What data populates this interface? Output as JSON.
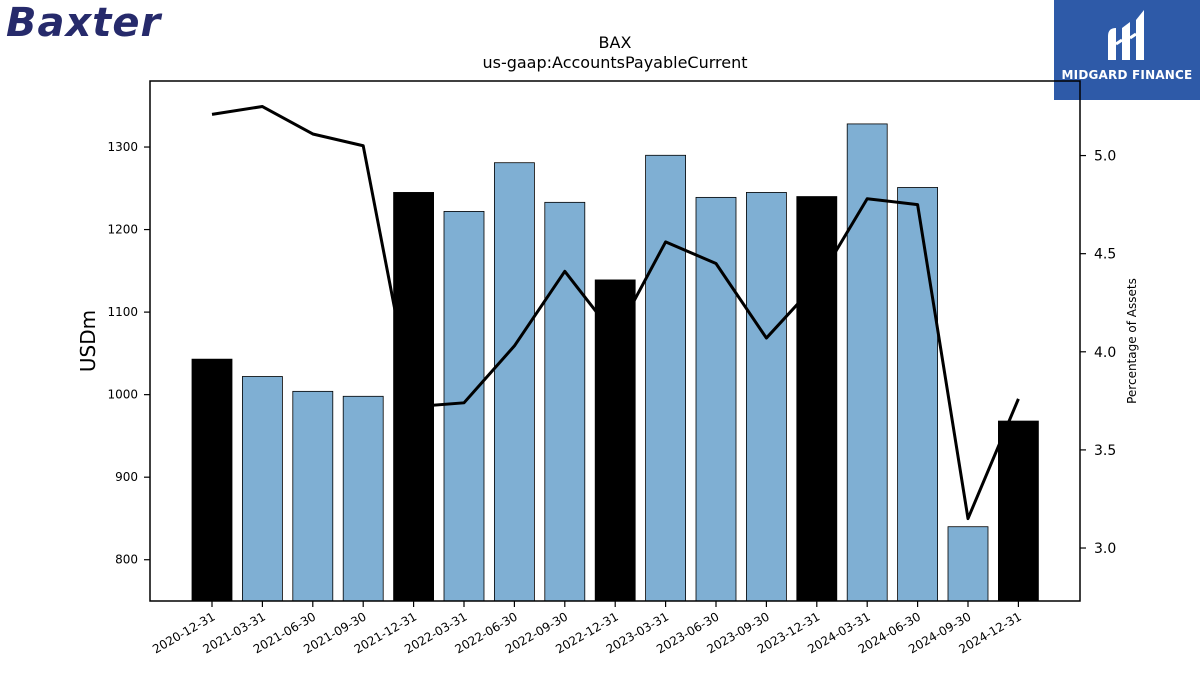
{
  "brand": {
    "logo_text": "Baxter",
    "badge_text": "MIDGARD FINANCE"
  },
  "chart_data": {
    "type": "bar",
    "title": "BAX",
    "subtitle": "us-gaap:AccountsPayableCurrent",
    "ylabel": "USDm",
    "y2label": "Percentage of Assets",
    "categories": [
      "2020-12-31",
      "2021-03-31",
      "2021-06-30",
      "2021-09-30",
      "2021-12-31",
      "2022-03-31",
      "2022-06-30",
      "2022-09-30",
      "2022-12-31",
      "2023-03-31",
      "2023-06-30",
      "2023-09-30",
      "2023-12-31",
      "2024-03-31",
      "2024-06-30",
      "2024-09-30",
      "2024-12-31"
    ],
    "series": [
      {
        "type": "bar",
        "values": [
          1043,
          1022,
          1004,
          998,
          1245,
          1222,
          1281,
          1233,
          1139,
          1290,
          1239,
          1245,
          1240,
          1328,
          1251,
          840,
          968
        ]
      },
      {
        "type": "line",
        "axis": "right",
        "values": [
          5.21,
          5.25,
          5.11,
          5.05,
          3.72,
          3.74,
          4.03,
          4.41,
          4.08,
          4.56,
          4.45,
          4.07,
          4.35,
          4.78,
          4.75,
          3.15,
          3.76
        ]
      }
    ],
    "year_end_bar_color": "#000000",
    "bar_color": "#7fafd3",
    "line_color": "#000000",
    "ylim": [
      750,
      1380
    ],
    "y2lim": [
      2.73,
      5.38
    ],
    "yticks": [
      800,
      900,
      1000,
      1100,
      1200,
      1300
    ],
    "y2ticks": [
      "3.0",
      "3.5",
      "4.0",
      "4.5",
      "5.0"
    ],
    "grid": false,
    "legend": "none"
  }
}
